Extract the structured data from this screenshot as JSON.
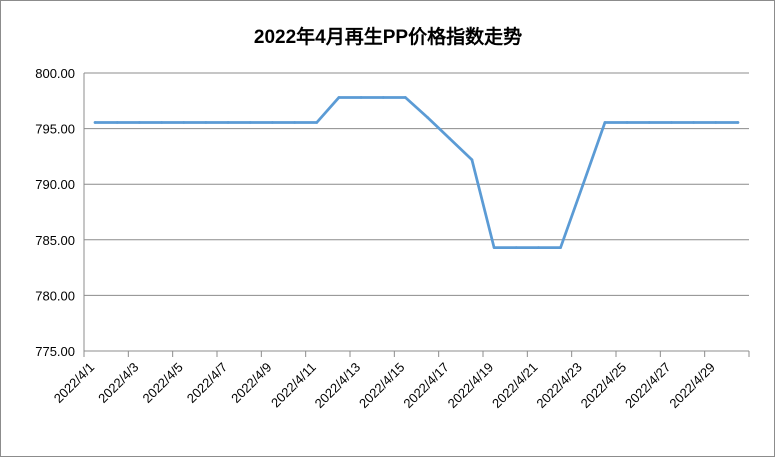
{
  "chart_data": {
    "type": "line",
    "title": "2022年4月再生PP价格指数走势",
    "xlabel": "",
    "ylabel": "",
    "ylim": [
      775,
      800
    ],
    "yticks": [
      "775.00",
      "780.00",
      "785.00",
      "790.00",
      "795.00",
      "800.00"
    ],
    "xtick_labels": [
      "2022/4/1",
      "2022/4/3",
      "2022/4/5",
      "2022/4/7",
      "2022/4/9",
      "2022/4/11",
      "2022/4/13",
      "2022/4/15",
      "2022/4/17",
      "2022/4/19",
      "2022/4/21",
      "2022/4/23",
      "2022/4/25",
      "2022/4/27",
      "2022/4/29"
    ],
    "grid": true,
    "legend": "none",
    "line_color": "#5b9bd5",
    "series": [
      {
        "dates": [
          "2022/4/1",
          "2022/4/2",
          "2022/4/3",
          "2022/4/4",
          "2022/4/5",
          "2022/4/6",
          "2022/4/7",
          "2022/4/8",
          "2022/4/9",
          "2022/4/10",
          "2022/4/11",
          "2022/4/12",
          "2022/4/13",
          "2022/4/14",
          "2022/4/15",
          "2022/4/16",
          "2022/4/17",
          "2022/4/18",
          "2022/4/19",
          "2022/4/20",
          "2022/4/21",
          "2022/4/22",
          "2022/4/23",
          "2022/4/24",
          "2022/4/25",
          "2022/4/26",
          "2022/4/27",
          "2022/4/28",
          "2022/4/29",
          "2022/4/30"
        ],
        "values": [
          795.55,
          795.55,
          795.55,
          795.55,
          795.55,
          795.55,
          795.55,
          795.55,
          795.55,
          795.55,
          795.55,
          797.8,
          797.8,
          797.8,
          797.8,
          796.0,
          794.1,
          792.2,
          784.3,
          784.3,
          784.3,
          784.3,
          789.9,
          795.55,
          795.55,
          795.55,
          795.55,
          795.55,
          795.55,
          795.55
        ]
      }
    ]
  }
}
